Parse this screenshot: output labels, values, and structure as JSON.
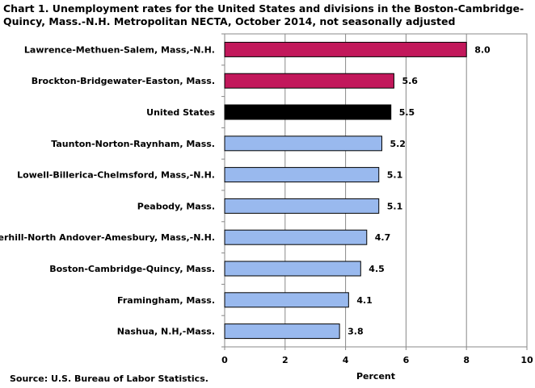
{
  "chart_data": {
    "type": "bar",
    "orientation": "horizontal",
    "title": "Chart 1. Unemployment rates for the United States and divisions in the Boston-Cambridge-Quincy, Mass.-N.H. Metropolitan NECTA, October 2014, not seasonally adjusted",
    "xlabel": "Percent",
    "ylabel": "",
    "xlim": [
      0,
      10
    ],
    "xticks": [
      0,
      2,
      4,
      6,
      8,
      10
    ],
    "grid": true,
    "categories": [
      "Lawrence-Methuen-Salem, Mass,-N.H.",
      "Brockton-Bridgewater-Easton, Mass.",
      "United States",
      "Taunton-Norton-Raynham, Mass.",
      "Lowell-Billerica-Chelmsford, Mass,-N.H.",
      "Peabody, Mass.",
      "Haverhill-North Andover-Amesbury, Mass,-N.H.",
      "Boston-Cambridge-Quincy, Mass.",
      "Framingham, Mass.",
      "Nashua, N.H,-Mass."
    ],
    "values": [
      8.0,
      5.6,
      5.5,
      5.2,
      5.1,
      5.1,
      4.7,
      4.5,
      4.1,
      3.8
    ],
    "labels": [
      "8.0",
      "5.6",
      "5.5",
      "5.2",
      "5.1",
      "5.1",
      "4.7",
      "4.5",
      "4.1",
      "3.8"
    ],
    "colors": [
      "#c2185b",
      "#c2185b",
      "#000000",
      "#99b9ee",
      "#99b9ee",
      "#99b9ee",
      "#99b9ee",
      "#99b9ee",
      "#99b9ee",
      "#99b9ee"
    ]
  },
  "source": "Source: U.S. Bureau of Labor Statistics."
}
